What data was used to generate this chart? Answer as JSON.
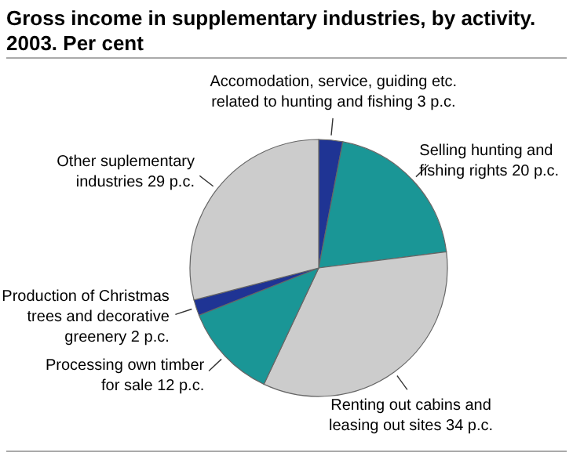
{
  "chart_data": {
    "type": "pie",
    "title": "Gross income in supplementary industries, by activity.\n2003. Per cent",
    "categories": [
      "Accomodation, service, guiding etc.\nrelated to hunting and fishing",
      "Selling hunting and\nfishing rights",
      "Renting out cabins and\nleasing out sites",
      "Processing own timber\nfor sale",
      "Production of Christmas\ntrees and decorative\ngreenery",
      "Other suplementary\nindustries"
    ],
    "values": [
      3,
      20,
      34,
      12,
      2,
      29
    ],
    "value_labels": [
      "3 p.c.",
      "20 p.c.",
      "34 p.c.",
      "12 p.c.",
      "2 p.c.",
      "29 p.c."
    ],
    "colors": [
      "#1f3494",
      "#1a9696",
      "#cccccc",
      "#1a9696",
      "#1f3494",
      "#cccccc"
    ]
  }
}
